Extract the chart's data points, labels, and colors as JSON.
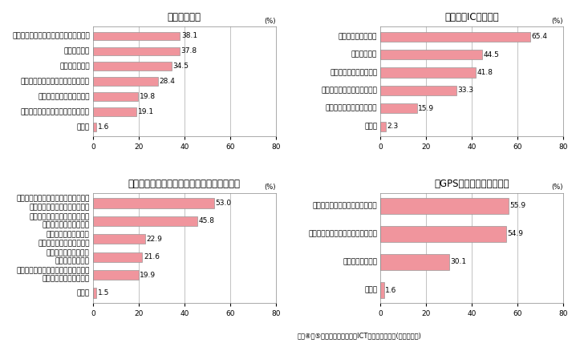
{
  "panel_tl": {
    "title": "【電子タグ】",
    "categories": [
      "食品の生産・流通履歴に関する情報提供",
      "荷物等の追跡",
      "レジ等での精算",
      "洗類の素材等商品に関する情報提供",
      "人の所在に応じた情報提供",
      "特定施設やエリアにおける所在把握",
      "その他"
    ],
    "values": [
      38.1,
      37.8,
      34.5,
      28.4,
      19.8,
      19.1,
      1.6
    ],
    "xlim": 80,
    "xticks": [
      0,
      20,
      40,
      60,
      80
    ]
  },
  "panel_tr": {
    "title": "【非接触ICカード】",
    "categories": [
      "キャッシュレス決済",
      "電子チケット",
      "会員証・ポイントカード",
      "ネットショッピング等の認証",
      "家の玄関やロッカー等の鍵",
      "その他"
    ],
    "values": [
      65.4,
      44.5,
      41.8,
      33.3,
      15.9,
      2.3
    ],
    "xlim": 80,
    "xticks": [
      0,
      20,
      40,
      60,
      80
    ]
  },
  "panel_bl": {
    "title": "【新たにネットワーク機能が備わった機器】",
    "categories": [
      "ネットワークカメラ・人感センサー等\nを利用したホームセキュリティ",
      "ネットワークカメラを利用した\n特定場所の映像情報提供",
      "センサー等を利用した\n一人暮らし高齢者の見守り",
      "バイタルセンサー等を\n利用した健康管理",
      "携帯電話による家電機器の遠隔操作・\n家電機器の遠隔故障診断",
      "その他"
    ],
    "values": [
      53.0,
      45.8,
      22.9,
      21.6,
      19.9,
      1.5
    ],
    "xlim": 80,
    "xticks": [
      0,
      20,
      40,
      60,
      80
    ]
  },
  "panel_br": {
    "title": "【GPS等の位置確認機能】",
    "categories": [
      "車両等の盗難防止・交通事故対応",
      "自動車や人の所在に応じた情報提供",
      "子供等の所在把握",
      "その他"
    ],
    "values": [
      55.9,
      54.9,
      30.1,
      1.6
    ],
    "xlim": 80,
    "xticks": [
      0,
      20,
      40,
      60,
      80
    ]
  },
  "bar_color": "#f0959d",
  "bar_edge_color": "#999999",
  "bar_height": 0.55,
  "footnote": "図表④、⑤　（出典）「企業のICT活用現状調査」(ウェブ調査)",
  "pct_label": "(%)",
  "title_fontsize": 8.5,
  "label_fontsize": 6.5,
  "tick_fontsize": 6.5,
  "value_fontsize": 6.5,
  "grid_color": "#aaaaaa",
  "box_color": "#888888"
}
